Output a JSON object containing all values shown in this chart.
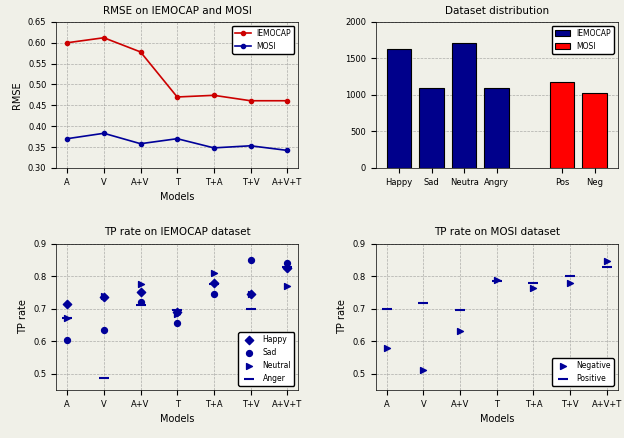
{
  "rmse_models": [
    "A",
    "V",
    "A+V",
    "T",
    "T+A",
    "T+V",
    "A+V+T"
  ],
  "rmse_iemocap": [
    0.6,
    0.612,
    0.578,
    0.47,
    0.474,
    0.461,
    0.461
  ],
  "rmse_mosi": [
    0.37,
    0.383,
    0.358,
    0.37,
    0.348,
    0.353,
    0.342
  ],
  "rmse_ylim": [
    0.3,
    0.65
  ],
  "rmse_yticks": [
    0.3,
    0.35,
    0.4,
    0.45,
    0.5,
    0.55,
    0.6,
    0.65
  ],
  "bar_categories": [
    "Happy",
    "Sad",
    "Neutra",
    "Angry",
    "Pos",
    "Neg"
  ],
  "bar_iemocap": [
    1630,
    1090,
    1710,
    1100,
    0,
    0
  ],
  "bar_mosi": [
    0,
    0,
    0,
    0,
    1170,
    1020
  ],
  "bar_ylim": [
    0,
    2000
  ],
  "bar_yticks": [
    0,
    500,
    1000,
    1500,
    2000
  ],
  "tp_iemocap_models": [
    "A",
    "V",
    "A+V",
    "T",
    "T+A",
    "T+V",
    "A+V+T"
  ],
  "tp_iemocap_happy": [
    0.715,
    0.735,
    0.75,
    0.69,
    0.78,
    0.745,
    0.825
  ],
  "tp_iemocap_sad": [
    0.605,
    0.635,
    0.72,
    0.655,
    0.745,
    0.85,
    0.84
  ],
  "tp_iemocap_neutral": [
    0.67,
    0.74,
    0.775,
    0.685,
    0.81,
    0.745,
    0.77
  ],
  "tp_iemocap_anger": [
    0.672,
    0.485,
    0.712,
    0.697,
    0.775,
    0.7,
    0.83
  ],
  "tp_mosi_models": [
    "A",
    "V",
    "A+V",
    "T",
    "T+A",
    "T+V",
    "A+V+T"
  ],
  "tp_mosi_negative": [
    0.578,
    0.51,
    0.632,
    0.79,
    0.765,
    0.778,
    0.848
  ],
  "tp_mosi_positive": [
    0.7,
    0.718,
    0.695,
    0.785,
    0.78,
    0.8,
    0.828
  ],
  "color_red": "#cc0000",
  "color_blue": "#000099",
  "color_dark_blue": "#00008B",
  "color_bright_red": "#ff0000",
  "bg_color": "#f0f0e8"
}
